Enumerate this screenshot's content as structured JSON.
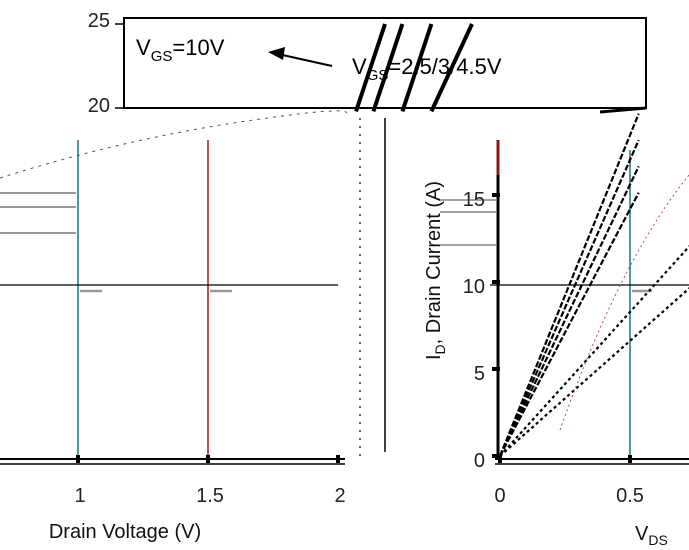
{
  "chart_data": [
    {
      "type": "line",
      "title": "",
      "xlabel": "",
      "ylabel": "",
      "yticks": [
        "20",
        "25"
      ],
      "annotations": {
        "vgs_high": {
          "prefix": "V",
          "sub": "GS",
          "suffix": "=10V"
        },
        "vgs_low": {
          "prefix": "V",
          "sub": "GS",
          "suffix": "=2.5/3/4.5V"
        }
      },
      "series": [
        {
          "x": [
            1.7,
            1.75
          ],
          "y": [
            19.8,
            25.0
          ]
        },
        {
          "x": [
            1.73,
            1.78
          ],
          "y": [
            19.8,
            25.0
          ]
        },
        {
          "x": [
            1.78,
            1.83
          ],
          "y": [
            19.8,
            25.0
          ]
        },
        {
          "x": [
            1.83,
            1.9
          ],
          "y": [
            19.8,
            25.0
          ]
        }
      ]
    },
    {
      "type": "line",
      "title": "",
      "xlabel": "Drain Voltage (V)",
      "ylabel": "",
      "xticks": [
        "1",
        "1.5",
        "2"
      ],
      "xlim": [
        0.5,
        2.0
      ],
      "ylim": [
        0,
        25
      ]
    },
    {
      "type": "line",
      "title": "",
      "xlabel": "V",
      "xlabel_sub": "DS",
      "ylabel": "I",
      "ylabel_sub": "D",
      "ylabel_rest": ", Drain Current (A)",
      "xticks": [
        "0",
        "0.5"
      ],
      "yticks": [
        "0",
        "5",
        "10",
        "15"
      ],
      "xlim": [
        0,
        0.75
      ],
      "ylim": [
        0,
        22
      ],
      "series": [
        {
          "x": [
            0,
            0.1,
            0.2,
            0.3,
            0.4
          ],
          "y": [
            0,
            5.2,
            10.4,
            15.6,
            20.8
          ]
        },
        {
          "x": [
            0,
            0.1,
            0.2,
            0.3,
            0.4
          ],
          "y": [
            0,
            4.8,
            9.6,
            14.4,
            19.2
          ]
        },
        {
          "x": [
            0,
            0.1,
            0.2,
            0.3,
            0.4
          ],
          "y": [
            0,
            4.4,
            8.8,
            13.2,
            17.6
          ]
        },
        {
          "x": [
            0,
            0.1,
            0.2,
            0.3,
            0.4
          ],
          "y": [
            0,
            4.0,
            8.0,
            12.0,
            16.0
          ]
        },
        {
          "x": [
            0,
            0.15,
            0.3,
            0.45,
            0.6
          ],
          "y": [
            0,
            3.5,
            7.0,
            10.5,
            14.0
          ]
        },
        {
          "x": [
            0,
            0.15,
            0.3,
            0.45,
            0.6
          ],
          "y": [
            0,
            2.8,
            5.6,
            8.4,
            11.2
          ]
        }
      ]
    }
  ]
}
